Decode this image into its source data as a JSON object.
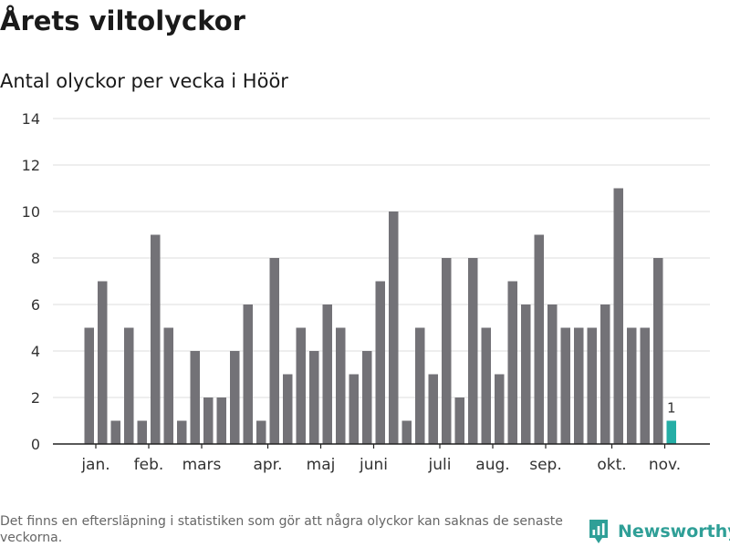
{
  "page": {
    "title": "Årets viltolyckor",
    "subtitle": "Antal olyckor per vecka i Höör",
    "footnote": "Det finns en eftersläpning i statistiken som gör att några olyckor kan saknas de senaste veckorna.",
    "brand": "Newsworthy"
  },
  "colors": {
    "bar": "#737277",
    "highlight": "#25aea6",
    "grid": "#dddddd",
    "axis": "#222222",
    "brand": "#2f9f97"
  },
  "chart_data": {
    "type": "bar",
    "title": "Antal olyckor per vecka i Höör",
    "xlabel": "",
    "ylabel": "",
    "ylim": [
      0,
      14
    ],
    "yticks": [
      0,
      2,
      4,
      6,
      8,
      10,
      12,
      14
    ],
    "grid": true,
    "weeks": [
      1,
      2,
      3,
      4,
      5,
      6,
      7,
      8,
      9,
      10,
      11,
      12,
      13,
      14,
      15,
      16,
      17,
      18,
      19,
      20,
      21,
      22,
      23,
      24,
      25,
      26,
      27,
      28,
      29,
      30,
      31,
      32,
      33,
      34,
      35,
      36,
      37,
      38,
      39,
      40,
      41,
      42,
      43,
      44,
      45
    ],
    "values": [
      5,
      7,
      1,
      5,
      1,
      9,
      5,
      1,
      4,
      2,
      2,
      4,
      6,
      1,
      8,
      3,
      5,
      4,
      6,
      5,
      3,
      4,
      7,
      10,
      1,
      5,
      3,
      8,
      2,
      8,
      5,
      3,
      7,
      6,
      9,
      6,
      5,
      5,
      5,
      6,
      11,
      5,
      5,
      8,
      1
    ],
    "highlight_index": 44,
    "highlight_label": "1",
    "month_labels": [
      {
        "label": "jan.",
        "week": 1.5
      },
      {
        "label": "feb.",
        "week": 5.5
      },
      {
        "label": "mars",
        "week": 9.5
      },
      {
        "label": "apr.",
        "week": 14.5
      },
      {
        "label": "maj",
        "week": 18.5
      },
      {
        "label": "juni",
        "week": 22.5
      },
      {
        "label": "juli",
        "week": 27.5
      },
      {
        "label": "aug.",
        "week": 31.5
      },
      {
        "label": "sep.",
        "week": 35.5
      },
      {
        "label": "okt.",
        "week": 40.5
      },
      {
        "label": "nov.",
        "week": 44.5
      }
    ]
  }
}
